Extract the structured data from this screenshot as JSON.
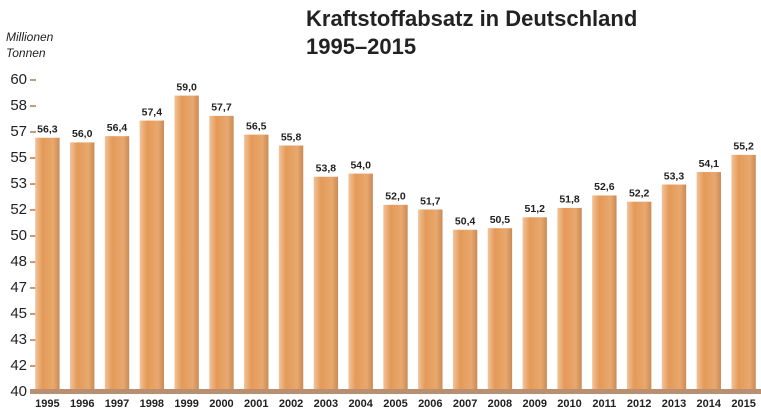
{
  "chart_data": {
    "type": "bar",
    "title": [
      "Kraftstoffabsatz in Deutschland",
      "1995–2015"
    ],
    "y_label": [
      "Millionen",
      "Tonnen"
    ],
    "categories": [
      "1995",
      "1996",
      "1997",
      "1998",
      "1999",
      "2000",
      "2001",
      "2002",
      "2003",
      "2004",
      "2005",
      "2006",
      "2007",
      "2008",
      "2009",
      "2010",
      "2011",
      "2012",
      "2013",
      "2014",
      "2015"
    ],
    "values": [
      56.3,
      56.0,
      56.4,
      57.4,
      59.0,
      57.7,
      56.5,
      55.8,
      53.8,
      54.0,
      52.0,
      51.7,
      50.4,
      50.5,
      51.2,
      51.8,
      52.6,
      52.2,
      53.3,
      54.1,
      55.2
    ],
    "value_labels": [
      "56,3",
      "56,0",
      "56,4",
      "57,4",
      "59,0",
      "57,7",
      "56,5",
      "55,8",
      "53,8",
      "54,0",
      "52,0",
      "51,7",
      "50,4",
      "50,5",
      "51,2",
      "51,8",
      "52,6",
      "52,2",
      "53,3",
      "54,1",
      "55,2"
    ],
    "color": "#e9a466",
    "ylim": [
      40,
      60
    ],
    "yticks": [
      40,
      {
        "value": 41.67,
        "label": "42"
      },
      {
        "value": 43.33,
        "label": "43"
      },
      45,
      {
        "value": 46.67,
        "label": "47"
      },
      {
        "value": 48.33,
        "label": "48"
      },
      50,
      {
        "value": 51.67,
        "label": "52"
      },
      {
        "value": 53.33,
        "label": "53"
      },
      55,
      {
        "value": 56.67,
        "label": "57"
      },
      {
        "value": 58.33,
        "label": "58"
      },
      60
    ]
  }
}
